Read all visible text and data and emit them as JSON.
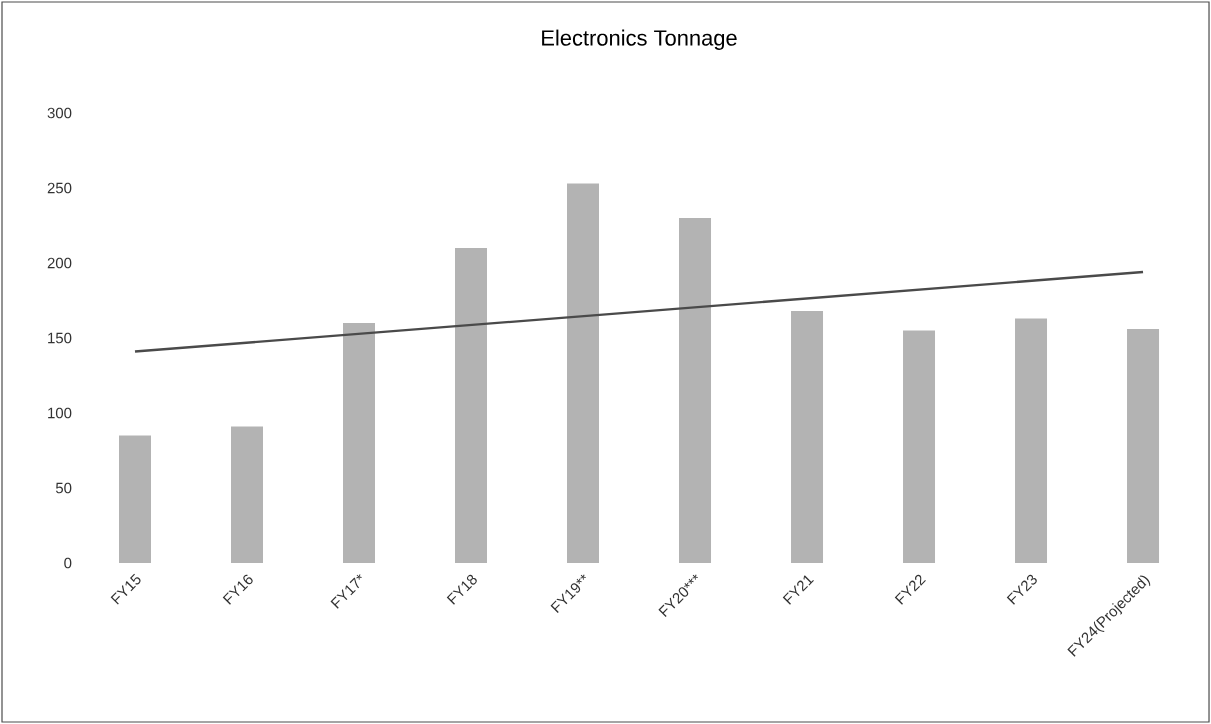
{
  "chart_data": {
    "type": "bar",
    "title": "Electronics Tonnage",
    "categories": [
      "FY15",
      "FY16",
      "FY17*",
      "FY18",
      "FY19**",
      "FY20***",
      "FY21",
      "FY22",
      "FY23",
      "FY24(Projected)"
    ],
    "series": [
      {
        "color": "#b3b3b3",
        "values": [
          85,
          91,
          160,
          210,
          253,
          230,
          168,
          155,
          163,
          156
        ]
      },
      {
        "type": "line",
        "color": "#4a4a4a",
        "values": [
          141,
          null,
          null,
          null,
          null,
          null,
          null,
          null,
          null,
          194
        ]
      }
    ],
    "ylim": [
      0,
      300
    ],
    "yticks": [
      0,
      50,
      100,
      150,
      200,
      250,
      300
    ]
  }
}
